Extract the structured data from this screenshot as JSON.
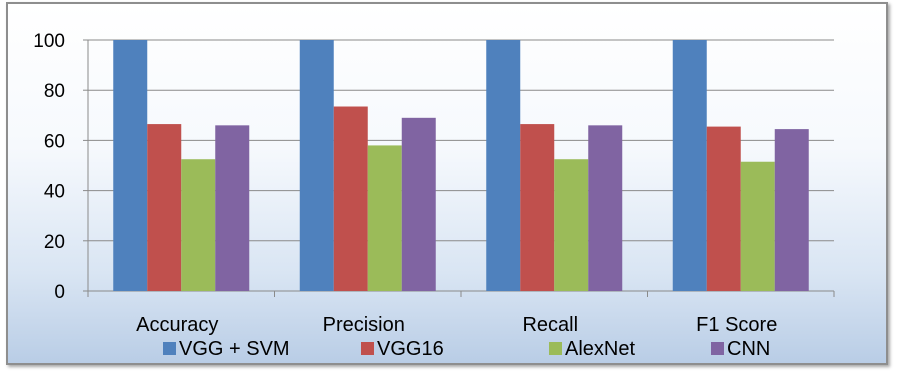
{
  "chart_data": {
    "type": "bar",
    "categories": [
      "Accuracy",
      "Precision",
      "Recall",
      "F1 Score"
    ],
    "series": [
      {
        "name": "VGG + SVM",
        "color": "#4f81bd",
        "values": [
          100,
          100,
          100,
          100
        ]
      },
      {
        "name": "VGG16",
        "color": "#c0504d",
        "values": [
          66.5,
          73.5,
          66.5,
          65.5
        ]
      },
      {
        "name": "AlexNet",
        "color": "#9bbb59",
        "values": [
          52.5,
          58,
          52.5,
          51.5
        ]
      },
      {
        "name": "CNN",
        "color": "#8064a2",
        "values": [
          66,
          69,
          66,
          64.5
        ]
      }
    ],
    "yticks": [
      0,
      20,
      40,
      60,
      80,
      100
    ],
    "ylim": [
      0,
      100
    ],
    "grid": true,
    "legend_position": "bottom"
  }
}
